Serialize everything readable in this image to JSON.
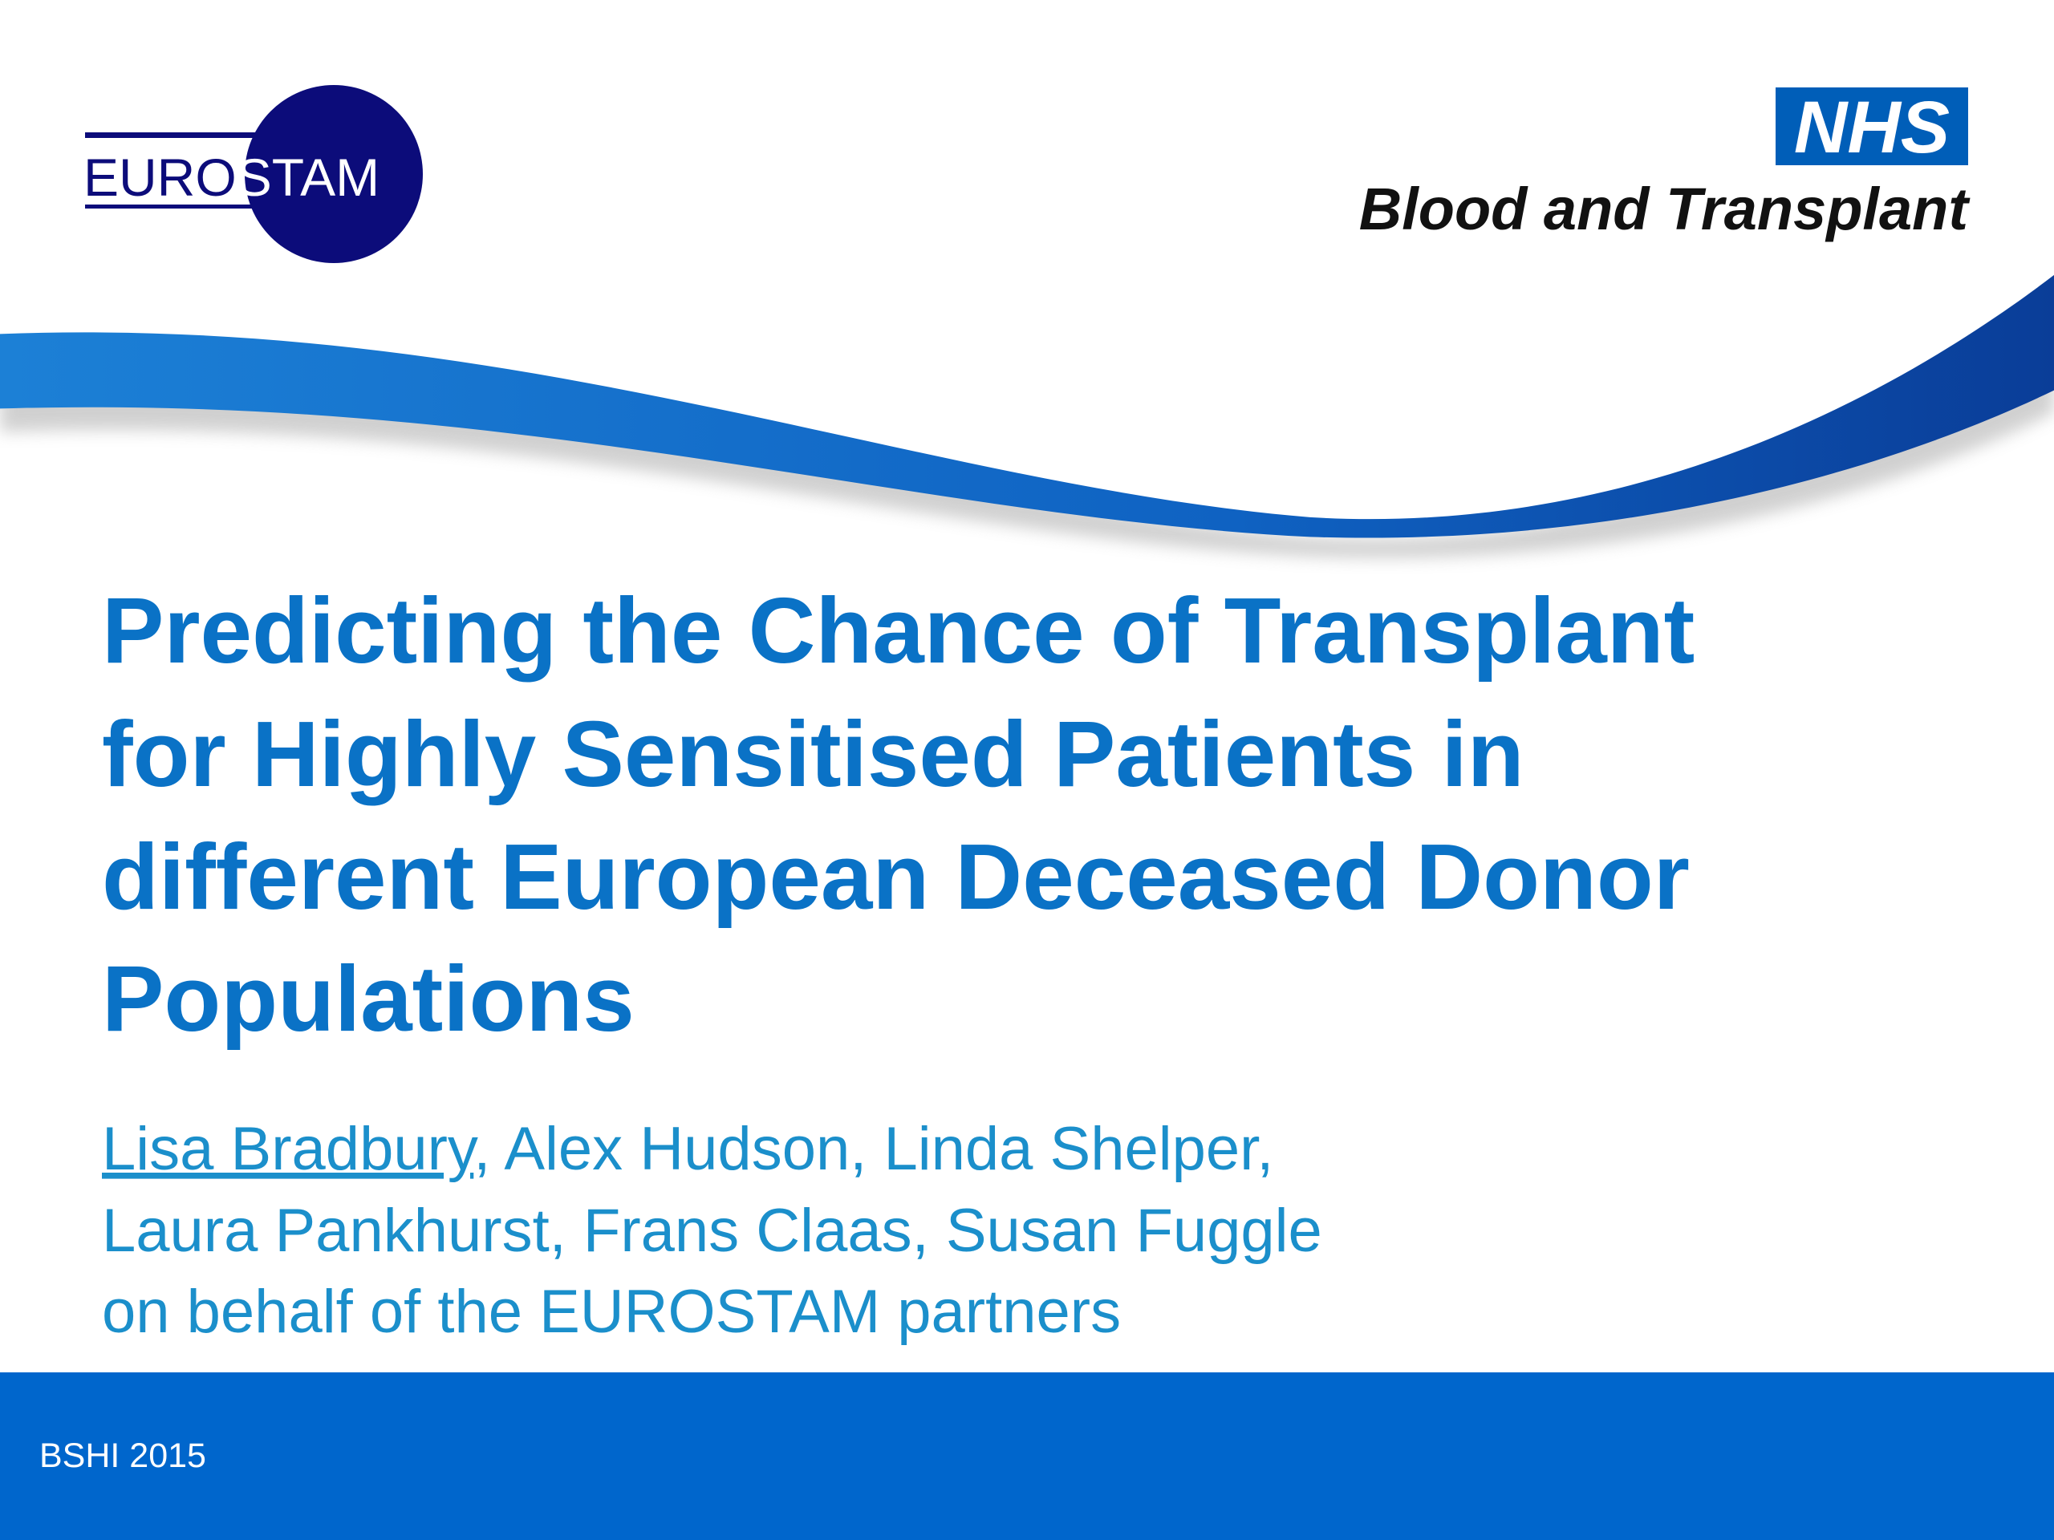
{
  "logos": {
    "eurostam": [
      "EURO",
      "STAM"
    ],
    "nhs": "NHS",
    "nhs_unit": "Blood and Transplant"
  },
  "title": [
    "Predicting the Chance of Transplant",
    "for Highly Sensitised Patients in",
    "different European Deceased Donor",
    "Populations"
  ],
  "authors": {
    "presenter": "Lisa Bradbury",
    "lines": [
      ", Alex Hudson, Linda Shelper,",
      "Laura Pankhurst, Frans Claas, Susan Fuggle",
      "on behalf of the EUROSTAM partners"
    ]
  },
  "footer": "BSHI 2015"
}
